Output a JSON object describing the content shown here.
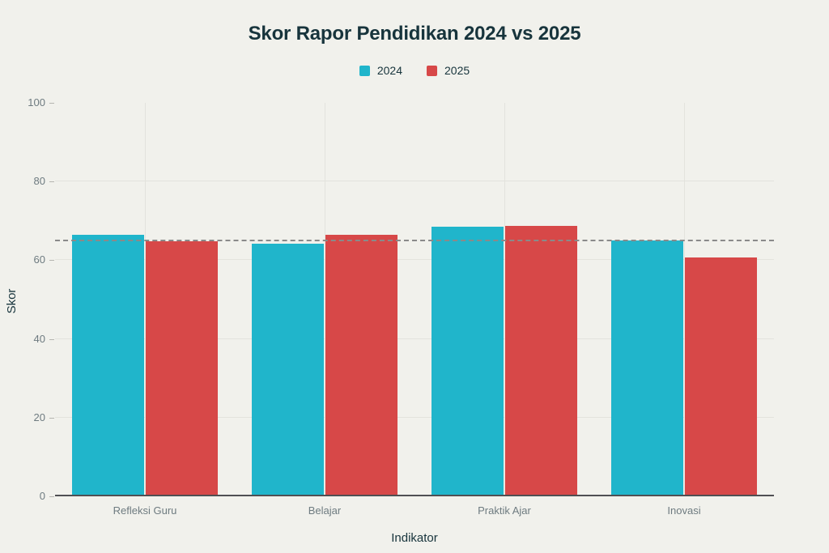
{
  "chart_data": {
    "type": "bar",
    "title": "Skor Rapor Pendidikan 2024 vs 2025",
    "xlabel": "Indikator",
    "ylabel": "Skor",
    "categories": [
      "Refleksi Guru",
      "Belajar",
      "Praktik Ajar",
      "Inovasi"
    ],
    "series": [
      {
        "name": "2024",
        "color": "#20b5cb",
        "values": [
          66.5,
          64.1,
          68.5,
          65.0
        ]
      },
      {
        "name": "2025",
        "color": "#d74848",
        "values": [
          64.9,
          66.5,
          68.8,
          60.7
        ]
      }
    ],
    "reference_line": {
      "value": 65,
      "style": "dashed",
      "color": "#8a8a8a"
    },
    "y_ticks": [
      "0",
      "20",
      "40",
      "60",
      "80",
      "100"
    ],
    "ylim": [
      0,
      100
    ],
    "grid": true,
    "legend_position": "top"
  },
  "colors": {
    "background": "#f1f1ec",
    "title_text": "#17343c",
    "tick_text": "#6e7b80",
    "gridline": "#e3e3dd",
    "tick_mark": "#b5b5b0",
    "axis_line": "#4f4f53"
  }
}
